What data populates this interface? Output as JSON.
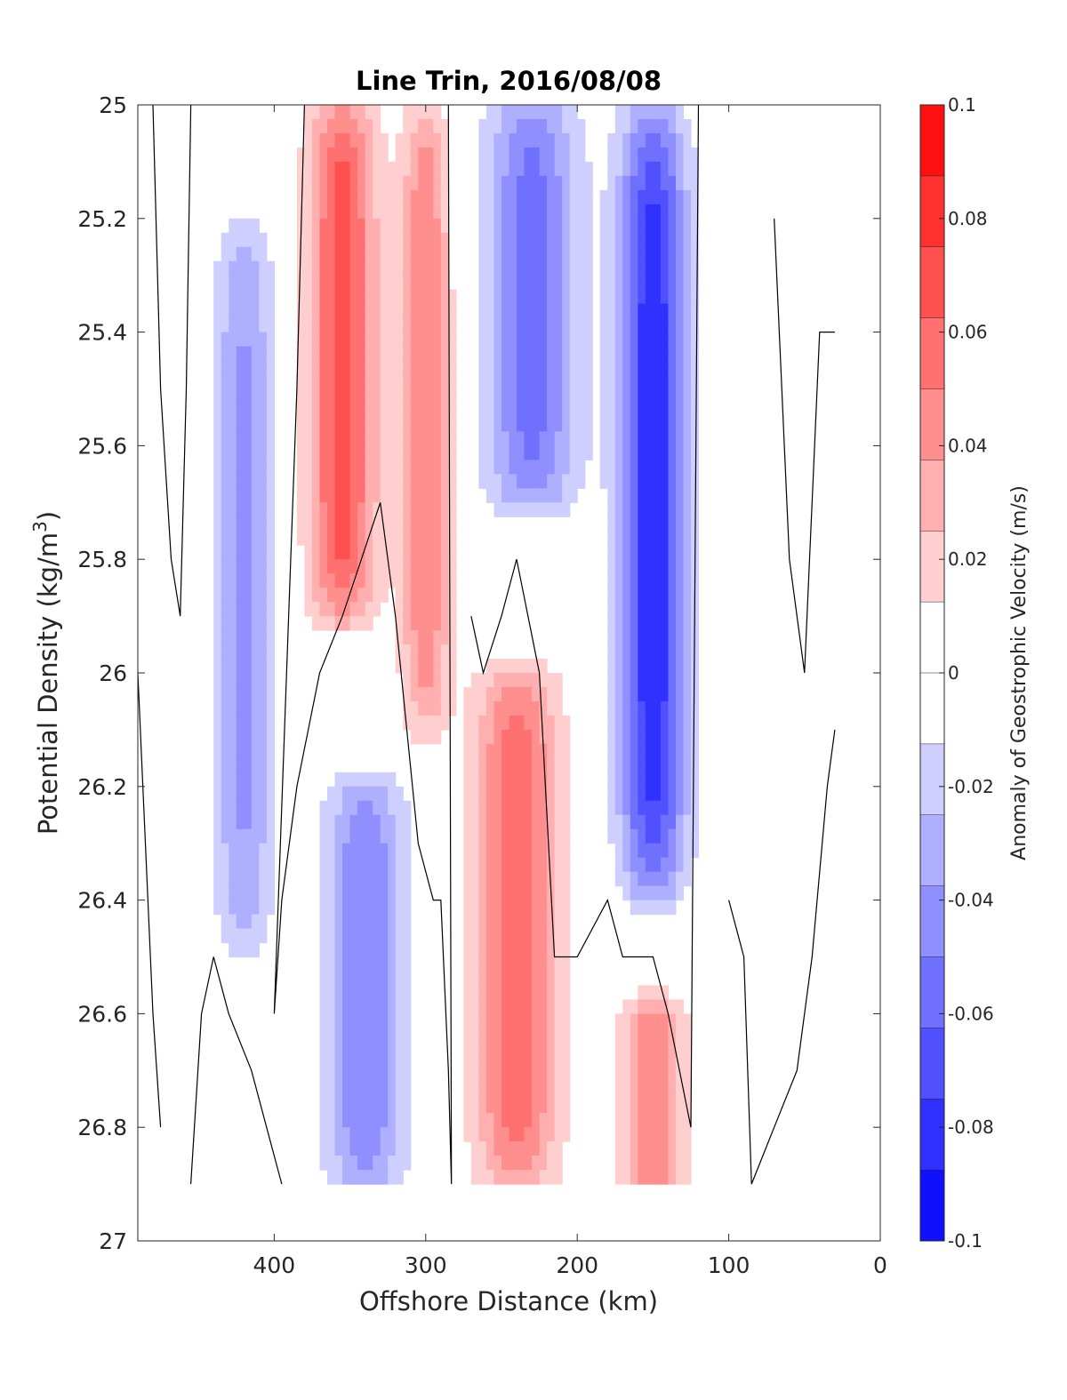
{
  "chart_data": {
    "type": "heatmap",
    "title": "Line Trin, 2016/08/08",
    "xlabel": "Offshore Distance (km)",
    "ylabel_main": "Potential Density (kg/m",
    "ylabel_sup": "3",
    "ylabel_close": ")",
    "colorbar_label": "Anomaly of Geostrophic Velocity (m/s)",
    "xlim": [
      490,
      0
    ],
    "ylim": [
      25,
      27
    ],
    "y_reversed": true,
    "x_reversed": true,
    "xticks": [
      400,
      300,
      200,
      100,
      0
    ],
    "xtick_labels": [
      "400",
      "300",
      "200",
      "100",
      "0"
    ],
    "yticks": [
      25,
      25.2,
      25.4,
      25.6,
      25.8,
      26,
      26.2,
      26.4,
      26.6,
      26.8,
      27
    ],
    "ytick_labels": [
      "25",
      "25.2",
      "25.4",
      "25.6",
      "25.8",
      "26",
      "26.2",
      "26.4",
      "26.6",
      "26.8",
      "27"
    ],
    "colorbar": {
      "min": -0.1,
      "max": 0.1,
      "ticks": [
        0.1,
        0.08,
        0.06,
        0.04,
        0.02,
        0,
        -0.02,
        -0.04,
        -0.06,
        -0.08,
        -0.1
      ],
      "tick_labels": [
        "0.1",
        "0.08",
        "0.06",
        "0.04",
        "0.02",
        "0",
        "-0.02",
        "-0.04",
        "-0.06",
        "-0.08",
        "-0.1"
      ],
      "levels": 16
    },
    "data_extent": {
      "x": [
        490,
        30
      ],
      "y": [
        25,
        26.9
      ]
    },
    "features": [
      {
        "name": "red core",
        "x": 355,
        "y": [
          25,
          25.9
        ],
        "peak": 0.07,
        "width_km": 22,
        "shape": "narrowing"
      },
      {
        "name": "red core",
        "x": 300,
        "y": [
          25,
          26.1
        ],
        "peak": 0.05,
        "width_km": 16
      },
      {
        "name": "red core",
        "x": 240,
        "y": [
          26.0,
          26.9
        ],
        "peak": 0.06,
        "width_km": 28
      },
      {
        "name": "red core",
        "x": 150,
        "y": [
          26.6,
          26.9
        ],
        "peak": 0.05,
        "width_km": 20
      },
      {
        "name": "blue core",
        "x": 150,
        "y": [
          25,
          26.4
        ],
        "peak": -0.085,
        "width_km": 22
      },
      {
        "name": "blue core",
        "x": 230,
        "y": [
          25,
          25.7
        ],
        "peak": -0.055,
        "width_km": 30
      },
      {
        "name": "blue core",
        "x": 420,
        "y": [
          25.2,
          26.5
        ],
        "peak": -0.04,
        "width_km": 20
      },
      {
        "name": "blue core",
        "x": 340,
        "y": [
          26.2,
          26.9
        ],
        "peak": -0.05,
        "width_km": 26
      }
    ],
    "zero_contours": [
      {
        "x": [
          480,
          475,
          468,
          462,
          458,
          455
        ],
        "y": [
          25.0,
          25.5,
          25.8,
          25.9,
          25.5,
          25.0
        ]
      },
      {
        "x": [
          490,
          485,
          480,
          475
        ],
        "y": [
          26.0,
          26.3,
          26.6,
          26.8
        ]
      },
      {
        "x": [
          455,
          448,
          440,
          430,
          415,
          405,
          395
        ],
        "y": [
          26.9,
          26.6,
          26.5,
          26.6,
          26.7,
          26.8,
          26.9
        ]
      },
      {
        "x": [
          380,
          385,
          400,
          395,
          385,
          370,
          355,
          330,
          320,
          305,
          295,
          290,
          285,
          283,
          285
        ],
        "y": [
          25.0,
          25.5,
          26.6,
          26.4,
          26.2,
          26.0,
          25.9,
          25.7,
          25.9,
          26.3,
          26.4,
          26.4,
          26.7,
          26.9,
          25.0
        ]
      },
      {
        "x": [
          270,
          262,
          250,
          240,
          225,
          215,
          200,
          180,
          170,
          150,
          140,
          125,
          120
        ],
        "y": [
          25.9,
          26.0,
          25.9,
          25.8,
          26.0,
          26.5,
          26.5,
          26.4,
          26.5,
          26.5,
          26.6,
          26.8,
          25.0
        ]
      },
      {
        "x": [
          100,
          90,
          85,
          70,
          55,
          45,
          35,
          30
        ],
        "y": [
          26.4,
          26.5,
          26.9,
          26.8,
          26.7,
          26.5,
          26.2,
          26.1
        ]
      },
      {
        "x": [
          70,
          60,
          50,
          40,
          30
        ],
        "y": [
          25.2,
          25.8,
          26.0,
          25.4,
          25.4
        ]
      }
    ]
  }
}
